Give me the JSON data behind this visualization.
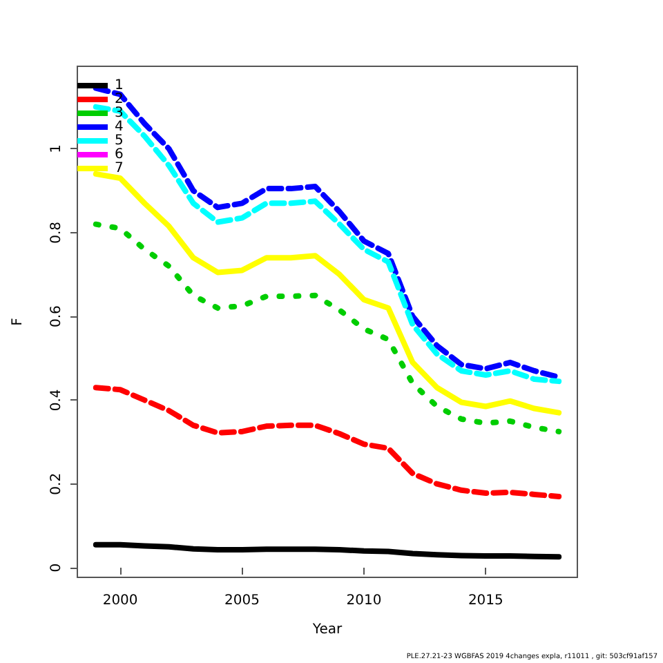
{
  "chart_data": {
    "type": "line",
    "xlabel": "Year",
    "ylabel": "F",
    "annotations": [
      "PLE.27.21-23 WGBFAS 2019 4changes expla, r11011 , git: 503cf91af157"
    ],
    "x": [
      1999,
      2000,
      2001,
      2002,
      2003,
      2004,
      2005,
      2006,
      2007,
      2008,
      2009,
      2010,
      2011,
      2012,
      2013,
      2014,
      2015,
      2016,
      2017,
      2018
    ],
    "xlim": [
      1998.24,
      2018.76
    ],
    "xticks": [
      2000,
      2005,
      2010,
      2015
    ],
    "ylim": [
      -0.023,
      1.197
    ],
    "yticks": [
      0,
      0.2,
      0.4,
      0.6,
      0.8,
      1.0
    ],
    "grid": false,
    "legend": "top left",
    "marker": "none",
    "series": [
      {
        "name": "1",
        "color": "#000000",
        "line_style": "solid",
        "values": [
          0.055,
          0.055,
          0.052,
          0.05,
          0.045,
          0.043,
          0.043,
          0.044,
          0.044,
          0.044,
          0.043,
          0.04,
          0.039,
          0.034,
          0.031,
          0.029,
          0.028,
          0.028,
          0.027,
          0.026
        ]
      },
      {
        "name": "2",
        "color": "#ff0000",
        "line_style": "dashed",
        "values": [
          0.43,
          0.425,
          0.4,
          0.375,
          0.34,
          0.322,
          0.325,
          0.338,
          0.34,
          0.34,
          0.32,
          0.295,
          0.285,
          0.225,
          0.2,
          0.185,
          0.178,
          0.18,
          0.175,
          0.17
        ]
      },
      {
        "name": "3",
        "color": "#00cd00",
        "line_style": "dotted",
        "values": [
          0.82,
          0.81,
          0.76,
          0.72,
          0.65,
          0.62,
          0.625,
          0.648,
          0.648,
          0.65,
          0.615,
          0.57,
          0.545,
          0.44,
          0.385,
          0.355,
          0.345,
          0.35,
          0.335,
          0.325
        ]
      },
      {
        "name": "4",
        "color": "#0000ff",
        "line_style": "dashed",
        "values": [
          1.145,
          1.13,
          1.06,
          1.0,
          0.9,
          0.86,
          0.87,
          0.905,
          0.905,
          0.91,
          0.85,
          0.78,
          0.75,
          0.6,
          0.53,
          0.485,
          0.475,
          0.49,
          0.47,
          0.455
        ]
      },
      {
        "name": "5",
        "color": "#00ffff",
        "line_style": "dashed",
        "values": [
          1.1,
          1.09,
          1.03,
          0.96,
          0.87,
          0.825,
          0.835,
          0.87,
          0.87,
          0.875,
          0.82,
          0.76,
          0.73,
          0.58,
          0.51,
          0.47,
          0.46,
          0.47,
          0.45,
          0.445
        ]
      },
      {
        "name": "6",
        "color": "#ff00ff",
        "line_style": "dashed",
        "values": [
          null,
          null,
          null,
          null,
          null,
          null,
          null,
          null,
          null,
          null,
          null,
          null,
          null,
          null,
          null,
          null,
          null,
          null,
          null,
          null
        ]
      },
      {
        "name": "7",
        "color": "#ffff00",
        "line_style": "solid",
        "values": [
          0.94,
          0.93,
          0.87,
          0.815,
          0.74,
          0.705,
          0.71,
          0.74,
          0.74,
          0.745,
          0.7,
          0.64,
          0.62,
          0.49,
          0.43,
          0.395,
          0.385,
          0.398,
          0.38,
          0.37
        ]
      }
    ]
  }
}
